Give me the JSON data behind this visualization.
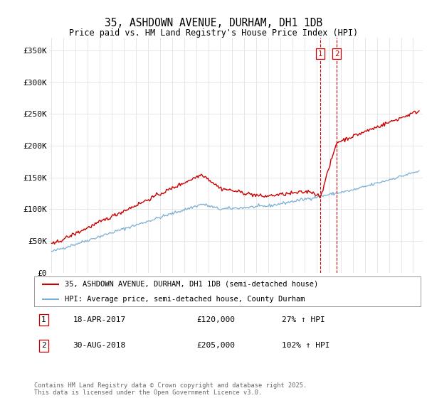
{
  "title": "35, ASHDOWN AVENUE, DURHAM, DH1 1DB",
  "subtitle": "Price paid vs. HM Land Registry's House Price Index (HPI)",
  "ylabel_ticks": [
    "£0",
    "£50K",
    "£100K",
    "£150K",
    "£200K",
    "£250K",
    "£300K",
    "£350K"
  ],
  "ytick_vals": [
    0,
    50000,
    100000,
    150000,
    200000,
    250000,
    300000,
    350000
  ],
  "ylim": [
    0,
    370000
  ],
  "xlim_start": 1994.8,
  "xlim_end": 2025.8,
  "marker1_x": 2017.29,
  "marker2_x": 2018.66,
  "legend_line1": "35, ASHDOWN AVENUE, DURHAM, DH1 1DB (semi-detached house)",
  "legend_line2": "HPI: Average price, semi-detached house, County Durham",
  "annot1_num": "1",
  "annot1_date": "18-APR-2017",
  "annot1_price": "£120,000",
  "annot1_hpi": "27% ↑ HPI",
  "annot2_num": "2",
  "annot2_date": "30-AUG-2018",
  "annot2_price": "£205,000",
  "annot2_hpi": "102% ↑ HPI",
  "footer": "Contains HM Land Registry data © Crown copyright and database right 2025.\nThis data is licensed under the Open Government Licence v3.0.",
  "red_color": "#cc0000",
  "blue_color": "#7bafd4",
  "bg_color": "#ffffff",
  "grid_color": "#dddddd"
}
